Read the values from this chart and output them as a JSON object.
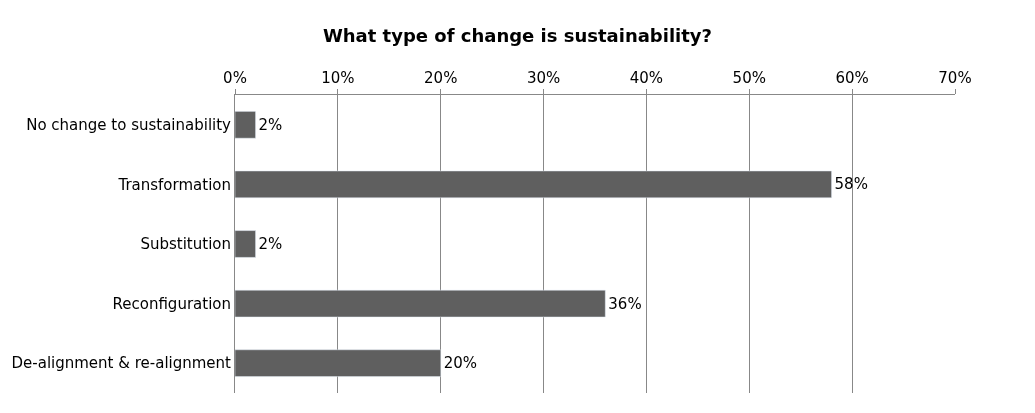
{
  "chart_data": {
    "type": "bar",
    "orientation": "horizontal",
    "title": "What type of change is sustainability?",
    "categories": [
      "No change to sustainability",
      "Transformation",
      "Substitution",
      "Reconfiguration",
      "De-alignment & re-alignment"
    ],
    "values": [
      2,
      58,
      2,
      36,
      20
    ],
    "value_labels": [
      "2%",
      "58%",
      "2%",
      "36%",
      "20%"
    ],
    "color": "#5f5f5f",
    "xlim": [
      0,
      70
    ],
    "xticks": [
      {
        "value": 0,
        "label": "0%"
      },
      {
        "value": 10,
        "label": "10%"
      },
      {
        "value": 20,
        "label": "20%"
      },
      {
        "value": 30,
        "label": "30%"
      },
      {
        "value": 40,
        "label": "40%"
      },
      {
        "value": 50,
        "label": "50%"
      },
      {
        "value": 60,
        "label": "60%"
      },
      {
        "value": 70,
        "label": "70%"
      }
    ],
    "grid": "x"
  }
}
